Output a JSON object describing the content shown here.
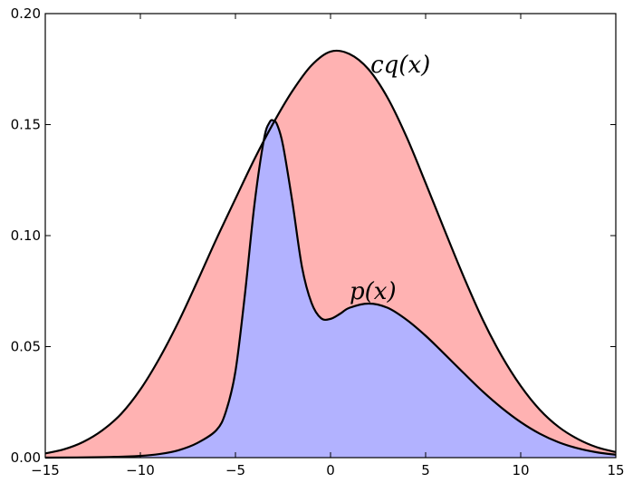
{
  "chart_data": {
    "type": "area",
    "xlim": [
      -15,
      15
    ],
    "ylim": [
      0,
      0.2
    ],
    "x_ticks": [
      -15,
      -10,
      -5,
      0,
      5,
      10,
      15
    ],
    "x_tick_labels": [
      "−15",
      "−10",
      "−5",
      "0",
      "5",
      "10",
      "15"
    ],
    "y_ticks": [
      0,
      0.05,
      0.1,
      0.15,
      0.2
    ],
    "y_tick_labels": [
      "0.00",
      "0.05",
      "0.10",
      "0.15",
      "0.20"
    ],
    "grid": false,
    "series": [
      {
        "name": "cq(x)",
        "fill_color": "#ffb2b2",
        "line_color": "#000000",
        "x": [
          -15,
          -14,
          -13,
          -12,
          -11,
          -10,
          -9,
          -8,
          -7,
          -6,
          -5,
          -4,
          -3,
          -2,
          -1,
          0,
          1,
          2,
          3,
          4,
          5,
          6,
          7,
          8,
          9,
          10,
          11,
          12,
          13,
          14,
          15
        ],
        "values": [
          0.0019,
          0.0038,
          0.0071,
          0.0123,
          0.0198,
          0.0307,
          0.0447,
          0.0611,
          0.0795,
          0.0985,
          0.1166,
          0.1345,
          0.1508,
          0.1652,
          0.1767,
          0.1829,
          0.1818,
          0.1749,
          0.1621,
          0.1444,
          0.1237,
          0.1024,
          0.0815,
          0.0622,
          0.0458,
          0.0323,
          0.0216,
          0.0138,
          0.0084,
          0.0047,
          0.0025
        ]
      },
      {
        "name": "p(x)",
        "fill_color": "#b2b2ff",
        "line_color": "#000000",
        "x": [
          -15,
          -12,
          -10,
          -9,
          -8,
          -7,
          -6,
          -5.5,
          -5,
          -4.5,
          -4,
          -3.5,
          -3.2,
          -3,
          -2.8,
          -2.5,
          -2,
          -1.5,
          -1,
          -0.5,
          0,
          0.5,
          1,
          2,
          3,
          4,
          5,
          6,
          7,
          8,
          9,
          10,
          11,
          12,
          13,
          14,
          15
        ],
        "values": [
          0.0,
          0.0002,
          0.0008,
          0.0016,
          0.0033,
          0.0066,
          0.0124,
          0.0208,
          0.0389,
          0.0737,
          0.1141,
          0.1434,
          0.1511,
          0.1518,
          0.1498,
          0.1407,
          0.1148,
          0.0858,
          0.0697,
          0.0628,
          0.0625,
          0.0648,
          0.0675,
          0.0694,
          0.0675,
          0.0621,
          0.0549,
          0.0466,
          0.0381,
          0.0298,
          0.0224,
          0.016,
          0.0108,
          0.0069,
          0.0042,
          0.0024,
          0.0013
        ]
      }
    ],
    "annotations": [
      {
        "text": "cq(x)",
        "x": 2.1,
        "y": 0.1735
      },
      {
        "text": "p(x)",
        "x": 1.0,
        "y": 0.0715
      }
    ]
  }
}
